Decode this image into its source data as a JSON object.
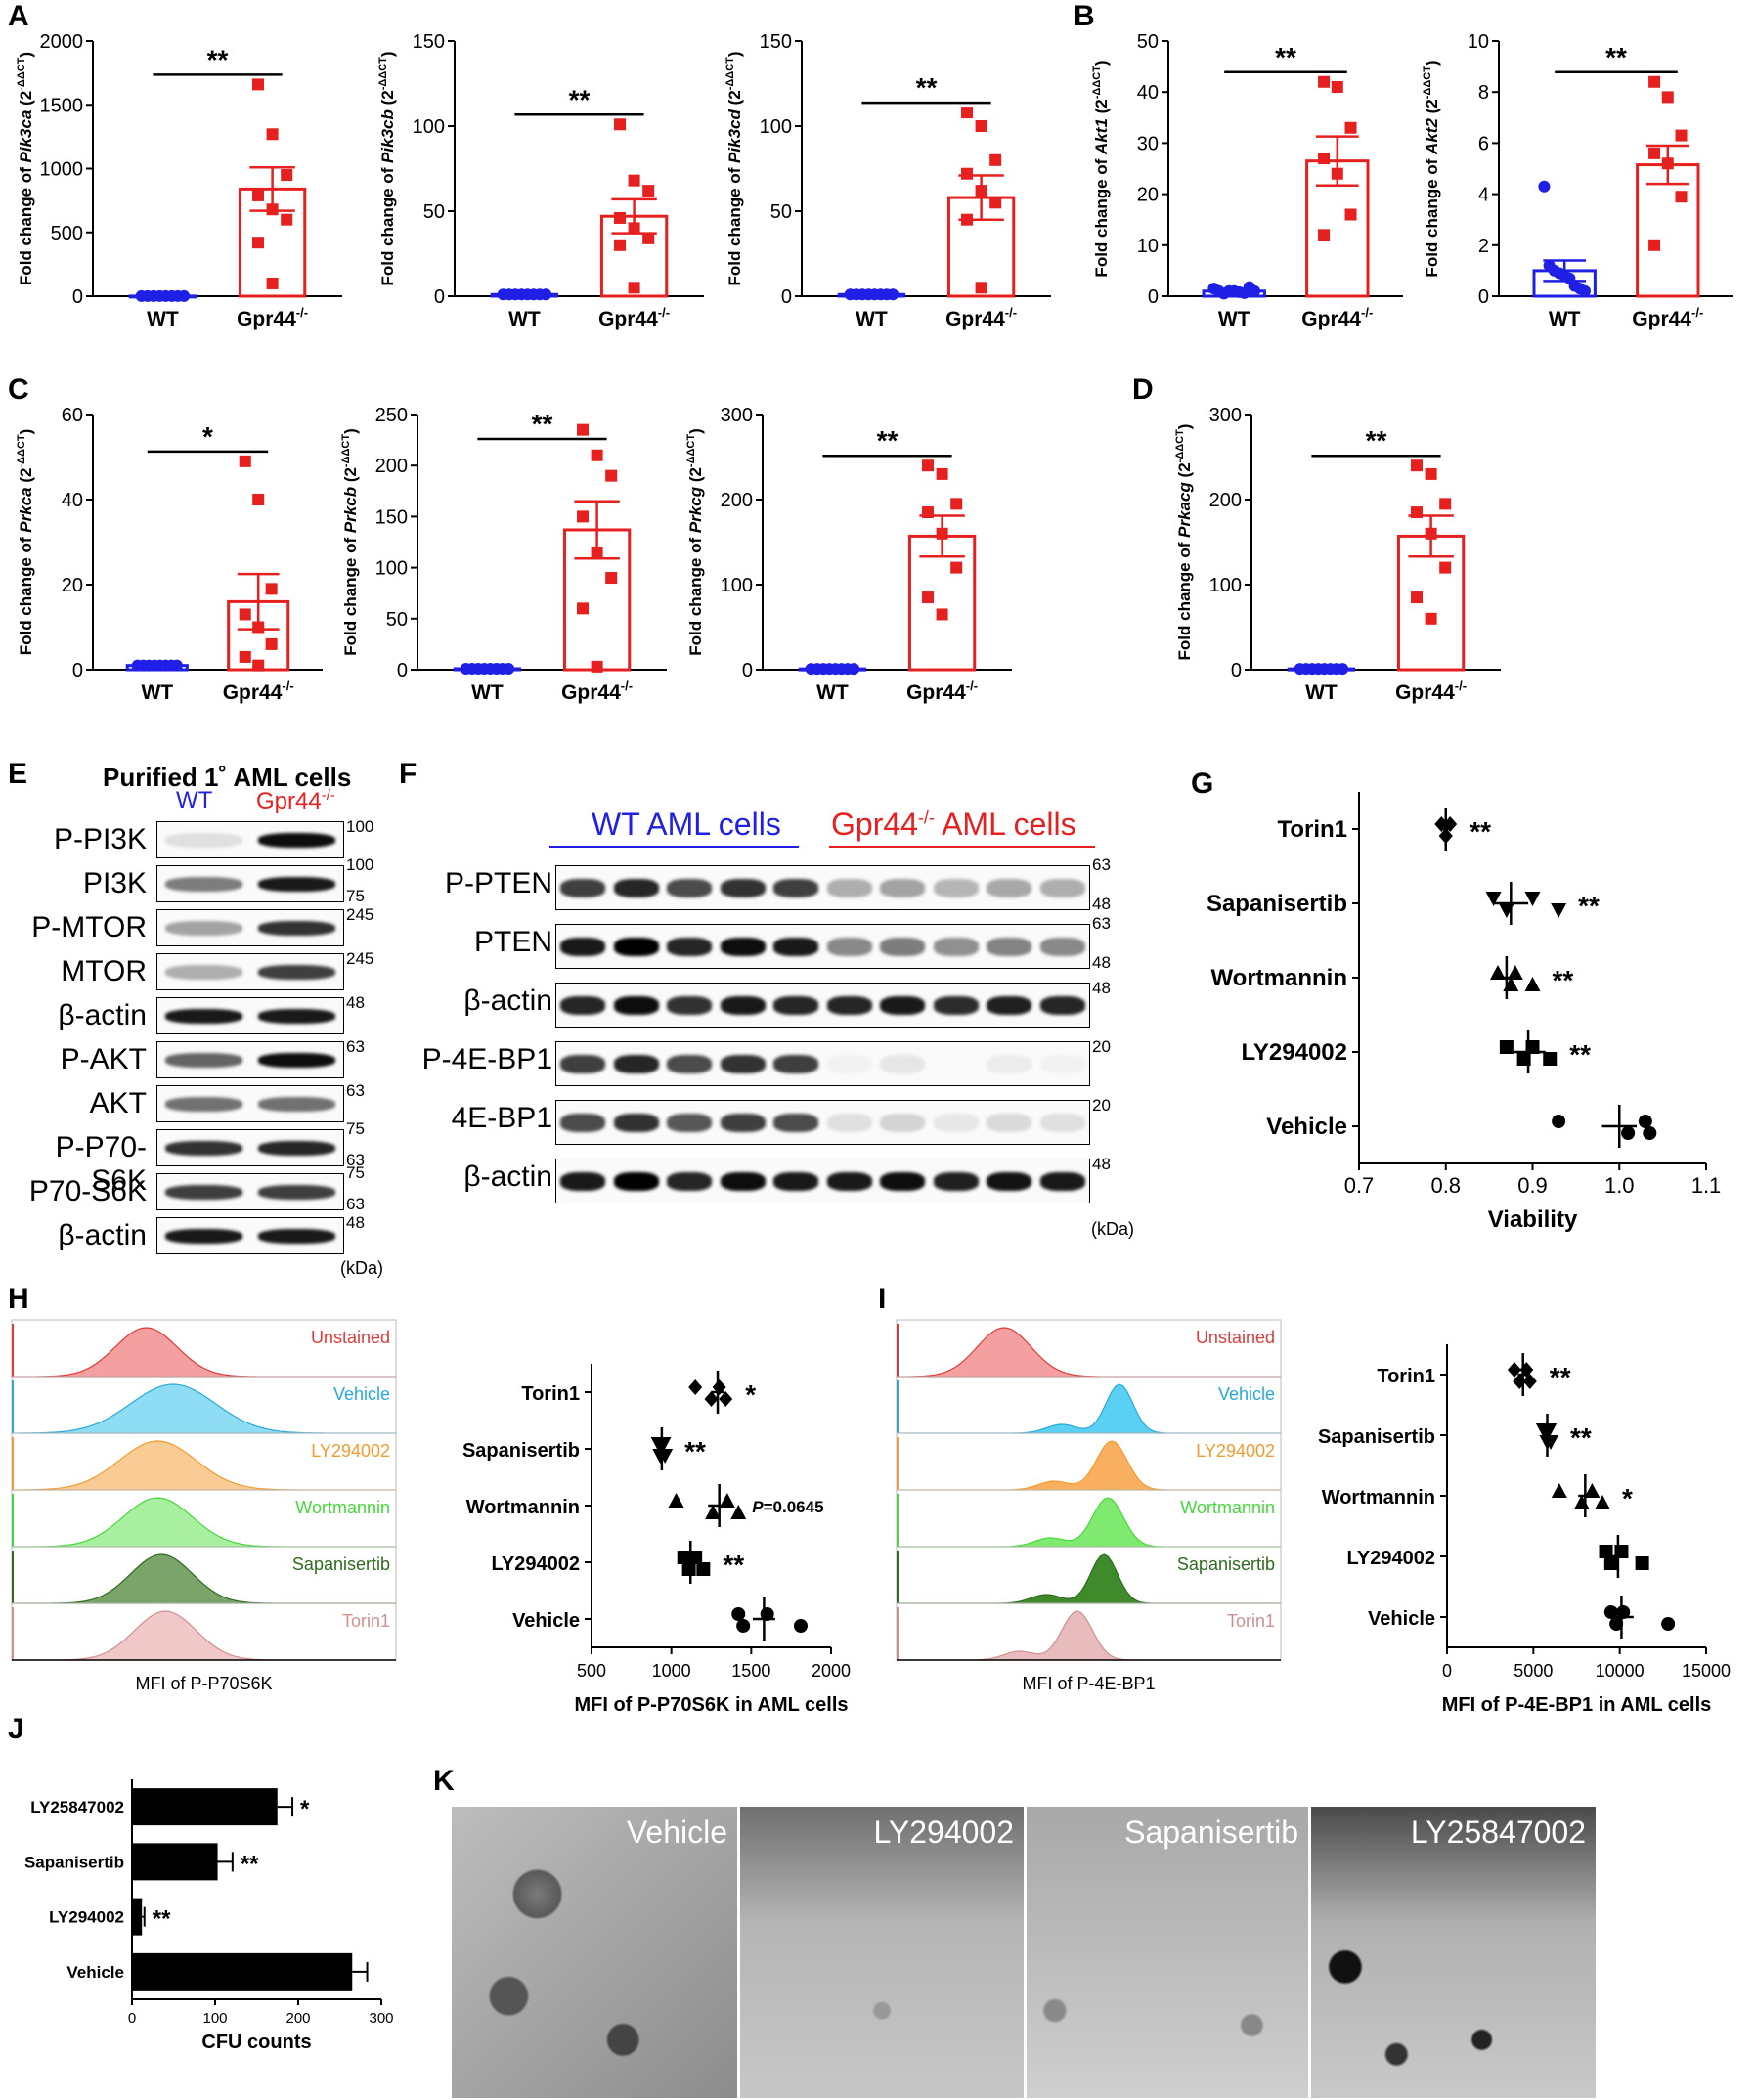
{
  "figure": {
    "panel_labels": {
      "A": "A",
      "B": "B",
      "C": "C",
      "D": "D",
      "E": "E",
      "F": "F",
      "G": "G",
      "H": "H",
      "I": "I",
      "J": "J",
      "K": "K"
    },
    "colors": {
      "wt": "#1f1fe6",
      "ko": "#e61f1f",
      "black": "#000000"
    }
  },
  "chart_data": [
    {
      "id": "pik3ca",
      "type": "scatter",
      "xtick_labels": [
        "WT",
        "Gpr44"
      ],
      "ko_superscript": "-/-",
      "ylabel_prefix": "Fold change of ",
      "gene": "Pik3ca",
      "ylabel_suffix": " (2",
      "ylabel_sup": "-ΔΔCT",
      "ylabel_close": ")",
      "ylim": [
        0,
        2000
      ],
      "yticks": [
        0,
        500,
        1000,
        1500,
        2000
      ],
      "wt_values": [
        1,
        1,
        1,
        1,
        1,
        1,
        1,
        1
      ],
      "ko_values": [
        1660,
        1270,
        950,
        790,
        680,
        600,
        420,
        100
      ],
      "wt_mean": 1,
      "ko_mean": 840,
      "ko_sem": 170,
      "wt_sem": 0,
      "sig": "**"
    },
    {
      "id": "pik3cb",
      "type": "scatter",
      "xtick_labels": [
        "WT",
        "Gpr44"
      ],
      "ko_superscript": "-/-",
      "ylabel_prefix": "Fold change of ",
      "gene": "Pik3cb",
      "ylabel_suffix": " (2",
      "ylabel_sup": "-ΔΔCT",
      "ylabel_close": ")",
      "ylim": [
        0,
        150
      ],
      "yticks": [
        0,
        50,
        100,
        150
      ],
      "wt_values": [
        1,
        1,
        1,
        1,
        1,
        1,
        1,
        1
      ],
      "ko_values": [
        101,
        68,
        62,
        46,
        40,
        34,
        30,
        5
      ],
      "wt_mean": 1,
      "ko_mean": 47,
      "ko_sem": 10,
      "wt_sem": 0,
      "sig": "**"
    },
    {
      "id": "pik3cd",
      "type": "scatter",
      "xtick_labels": [
        "WT",
        "Gpr44"
      ],
      "ko_superscript": "-/-",
      "ylabel_prefix": "Fold change of ",
      "gene": "Pik3cd",
      "ylabel_suffix": " (2",
      "ylabel_sup": "-ΔΔCT",
      "ylabel_close": ")",
      "ylim": [
        0,
        150
      ],
      "yticks": [
        0,
        50,
        100,
        150
      ],
      "wt_values": [
        1,
        1,
        1,
        1,
        1,
        1,
        1,
        1
      ],
      "ko_values": [
        108,
        100,
        80,
        72,
        62,
        55,
        45,
        5
      ],
      "wt_mean": 1,
      "ko_mean": 58,
      "ko_sem": 13,
      "wt_sem": 0,
      "sig": "**"
    },
    {
      "id": "akt1",
      "type": "scatter",
      "xtick_labels": [
        "WT",
        "Gpr44"
      ],
      "ko_superscript": "-/-",
      "ylabel_prefix": "Fold change of ",
      "gene": "Akt1",
      "ylabel_suffix": " (2",
      "ylabel_sup": "-ΔΔCT",
      "ylabel_close": ")",
      "ylim": [
        0,
        50
      ],
      "yticks": [
        0,
        10,
        20,
        30,
        40,
        50
      ],
      "wt_values": [
        1.5,
        1,
        0.5,
        1,
        1,
        0.8,
        0.6,
        1.8,
        1
      ],
      "ko_values": [
        42,
        41,
        33,
        27,
        24,
        16,
        12
      ],
      "wt_mean": 1,
      "ko_mean": 26.5,
      "ko_sem": 4.8,
      "wt_sem": 0.2,
      "sig": "**"
    },
    {
      "id": "akt2",
      "type": "scatter",
      "xtick_labels": [
        "WT",
        "Gpr44"
      ],
      "ko_superscript": "-/-",
      "ylabel_prefix": "Fold change of ",
      "gene": "Akt2",
      "ylabel_suffix": " (2",
      "ylabel_sup": "-ΔΔCT",
      "ylabel_close": ")",
      "ylim": [
        0,
        10
      ],
      "yticks": [
        0,
        2,
        4,
        6,
        8,
        10
      ],
      "wt_values": [
        4.3,
        1.2,
        1,
        0.9,
        0.8,
        0.7,
        0.4,
        0.3,
        0.2
      ],
      "ko_values": [
        8.4,
        7.8,
        6.3,
        5.6,
        5.2,
        3.9,
        2.0
      ],
      "wt_mean": 1,
      "ko_mean": 5.15,
      "ko_sem": 0.75,
      "wt_sem": 0.4,
      "sig": "**"
    },
    {
      "id": "prkca",
      "type": "scatter",
      "xtick_labels": [
        "WT",
        "Gpr44"
      ],
      "ko_superscript": "-/-",
      "ylabel_prefix": "Fold change of ",
      "gene": "Prkca",
      "ylabel_suffix": " (2",
      "ylabel_sup": "-ΔΔCT",
      "ylabel_close": ")",
      "ylim": [
        0,
        60
      ],
      "yticks": [
        0,
        20,
        40,
        60
      ],
      "wt_values": [
        1,
        1,
        1,
        1,
        1,
        1,
        1,
        1
      ],
      "ko_values": [
        49,
        40,
        19,
        13,
        10,
        6,
        3,
        1
      ],
      "wt_mean": 1,
      "ko_mean": 16,
      "ko_sem": 6.5,
      "wt_sem": 0.3,
      "sig": "*"
    },
    {
      "id": "prkcb",
      "type": "scatter",
      "xtick_labels": [
        "WT",
        "Gpr44"
      ],
      "ko_superscript": "-/-",
      "ylabel_prefix": "Fold change of ",
      "gene": "Prkcb",
      "ylabel_suffix": " (2",
      "ylabel_sup": "-ΔΔCT",
      "ylabel_close": ")",
      "ylim": [
        0,
        250
      ],
      "yticks": [
        0,
        50,
        100,
        150,
        200,
        250
      ],
      "wt_values": [
        1,
        1,
        1,
        1,
        1,
        1,
        1,
        1
      ],
      "ko_values": [
        235,
        210,
        190,
        150,
        115,
        90,
        60,
        3
      ],
      "wt_mean": 1,
      "ko_mean": 137,
      "ko_sem": 28,
      "wt_sem": 0,
      "sig": "**"
    },
    {
      "id": "prkcg",
      "type": "scatter",
      "xtick_labels": [
        "WT",
        "Gpr44"
      ],
      "ko_superscript": "-/-",
      "ylabel_prefix": "Fold change of ",
      "gene": "Prkcg",
      "ylabel_suffix": " (2",
      "ylabel_sup": "-ΔΔCT",
      "ylabel_close": ")",
      "ylim": [
        0,
        300
      ],
      "yticks": [
        0,
        100,
        200,
        300
      ],
      "wt_values": [
        1,
        1,
        1,
        1,
        1,
        1,
        1,
        1
      ],
      "ko_values": [
        240,
        230,
        195,
        185,
        160,
        120,
        85,
        65
      ],
      "wt_mean": 1,
      "ko_mean": 157,
      "ko_sem": 24,
      "wt_sem": 0,
      "sig": "**"
    },
    {
      "id": "prkacg",
      "type": "scatter",
      "xtick_labels": [
        "WT",
        "Gpr44"
      ],
      "ko_superscript": "-/-",
      "ylabel_prefix": "Fold change of ",
      "gene": "Prkacg",
      "ylabel_suffix": " (2",
      "ylabel_sup": "-ΔΔCT",
      "ylabel_close": ")",
      "ylim": [
        0,
        300
      ],
      "yticks": [
        0,
        100,
        200,
        300
      ],
      "wt_values": [
        1,
        1,
        1,
        1,
        1,
        1,
        1,
        1
      ],
      "ko_values": [
        240,
        230,
        195,
        185,
        160,
        120,
        85,
        60
      ],
      "wt_mean": 1,
      "ko_mean": 157,
      "ko_sem": 24,
      "wt_sem": 0,
      "sig": "**"
    },
    {
      "id": "viability",
      "type": "scatter",
      "xlabel": "Viability",
      "xlim": [
        0.7,
        1.1
      ],
      "xticks": [
        "0.7",
        "0.8",
        "0.9",
        "1.0",
        "1.1"
      ],
      "categories": [
        "Torin1",
        "Sapanisertib",
        "Wortmannin",
        "LY294002",
        "Vehicle"
      ],
      "means": [
        0.8,
        0.875,
        0.87,
        0.895,
        1.0
      ],
      "sems": [
        0.005,
        0.02,
        0.01,
        0.02,
        0.02
      ],
      "points": [
        [
          0.795,
          0.8,
          0.805,
          0.8
        ],
        [
          0.855,
          0.87,
          0.9,
          0.93
        ],
        [
          0.86,
          0.875,
          0.88,
          0.9
        ],
        [
          0.87,
          0.89,
          0.9,
          0.92
        ],
        [
          0.93,
          1.01,
          1.03,
          1.035
        ]
      ],
      "sig": [
        "**",
        "**",
        "**",
        "**",
        ""
      ]
    },
    {
      "id": "mfi_p70",
      "type": "scatter",
      "xlabel": "MFI of P-P70S6K in AML cells",
      "xlim": [
        500,
        2000
      ],
      "xticks": [
        "500",
        "1000",
        "1500",
        "2000"
      ],
      "categories": [
        "Torin1",
        "Sapanisertib",
        "Wortmannin",
        "LY294002",
        "Vehicle"
      ],
      "means": [
        1290,
        940,
        1300,
        1120,
        1580
      ],
      "sems": [
        40,
        20,
        70,
        30,
        70
      ],
      "points": [
        [
          1150,
          1250,
          1300,
          1340
        ],
        [
          920,
          930,
          950,
          960
        ],
        [
          1030,
          1260,
          1350,
          1420
        ],
        [
          1080,
          1110,
          1150,
          1200
        ],
        [
          1420,
          1450,
          1600,
          1810
        ]
      ],
      "sig": [
        "*",
        "**",
        "",
        "**",
        ""
      ],
      "pnote_italic": "P",
      "pnote_rest": "=0.0645"
    },
    {
      "id": "mfi_4ebp1",
      "type": "scatter",
      "xlabel": "MFI of P-4E-BP1 in AML cells",
      "xlim": [
        0,
        15000
      ],
      "xticks": [
        "0",
        "5000",
        "10000",
        "15000"
      ],
      "categories": [
        "Torin1",
        "Sapanisertib",
        "Wortmannin",
        "LY294002",
        "Vehicle"
      ],
      "means": [
        4400,
        5800,
        8000,
        9900,
        10100
      ],
      "sems": [
        300,
        150,
        400,
        600,
        700
      ],
      "points": [
        [
          3900,
          4200,
          4600,
          4800
        ],
        [
          5600,
          5800,
          5900,
          6000
        ],
        [
          6500,
          7800,
          8400,
          9000
        ],
        [
          9200,
          9500,
          10100,
          11300
        ],
        [
          9500,
          9800,
          10200,
          12800
        ]
      ],
      "sig": [
        "**",
        "**",
        "*",
        "",
        ""
      ]
    },
    {
      "id": "cfu",
      "type": "bar",
      "xlabel": "CFU counts",
      "xlim": [
        0,
        300
      ],
      "xticks": [
        "0",
        "100",
        "200",
        "300"
      ],
      "categories": [
        "LY25847002",
        "Sapanisertib",
        "LY294002",
        "Vehicle"
      ],
      "values": [
        175,
        103,
        12,
        265
      ],
      "errors": [
        18,
        18,
        3,
        18
      ],
      "sig": [
        "*",
        "**",
        "**",
        ""
      ]
    }
  ],
  "panel_e": {
    "title": "Purified 1˚ AML cells",
    "lane_wt": "WT",
    "lane_ko": "Gpr44",
    "lane_ko_sup": "-/-",
    "rows": [
      {
        "label": "P-PI3K",
        "markers": [
          "100"
        ]
      },
      {
        "label": "PI3K",
        "markers": [
          "100",
          "75"
        ]
      },
      {
        "label": "P-MTOR",
        "markers": [
          "245"
        ]
      },
      {
        "label": "MTOR",
        "markers": [
          "245"
        ]
      },
      {
        "label": "β-actin",
        "markers": [
          "48"
        ]
      },
      {
        "label": "P-AKT",
        "markers": [
          "63"
        ]
      },
      {
        "label": "AKT",
        "markers": [
          "63"
        ]
      },
      {
        "label": "P-P70-S6K",
        "markers": [
          "75",
          "63"
        ]
      },
      {
        "label": "P70-S6K",
        "markers": [
          "75",
          "63"
        ]
      },
      {
        "label": "β-actin",
        "markers": [
          "48"
        ]
      }
    ],
    "kda": "(kDa)"
  },
  "panel_f": {
    "wt_header": "WT AML cells",
    "ko_header_pre": "Gpr44",
    "ko_header_sup": "-/-",
    "ko_header_post": " AML cells",
    "rows": [
      {
        "label": "P-PTEN",
        "markers": [
          "63",
          "48"
        ]
      },
      {
        "label": "PTEN",
        "markers": [
          "63",
          "48"
        ]
      },
      {
        "label": "β-actin",
        "markers": [
          "48"
        ]
      },
      {
        "label": "P-4E-BP1",
        "markers": [
          "20"
        ]
      },
      {
        "label": "4E-BP1",
        "markers": [
          "20"
        ]
      },
      {
        "label": "β-actin",
        "markers": [
          "48"
        ]
      }
    ],
    "kda": "(kDa)"
  },
  "panel_h_hist": {
    "xlabel": "MFI of P-P70S6K",
    "tracks": [
      {
        "label": "Unstained",
        "color": "#e03a3a",
        "fill": "#f4a0a0"
      },
      {
        "label": "Vehicle",
        "color": "#29a9d8",
        "fill": "#8fdcf5"
      },
      {
        "label": "LY294002",
        "color": "#f29b30",
        "fill": "#f8cc94"
      },
      {
        "label": "Wortmannin",
        "color": "#45d83a",
        "fill": "#a8f0a0"
      },
      {
        "label": "Sapanisertib",
        "color": "#2e6b1e",
        "fill": "#7aa46a"
      },
      {
        "label": "Torin1",
        "color": "#d09090",
        "fill": "#f1c8c8"
      }
    ]
  },
  "panel_i_hist": {
    "xlabel": "MFI of P-4E-BP1",
    "tracks": [
      {
        "label": "Unstained",
        "color": "#e03a3a",
        "fill": "#f4a0a0"
      },
      {
        "label": "Vehicle",
        "color": "#29a9d8",
        "fill": "#5ad0f5"
      },
      {
        "label": "LY294002",
        "color": "#f29b30",
        "fill": "#f8b060"
      },
      {
        "label": "Wortmannin",
        "color": "#45d83a",
        "fill": "#80ea70"
      },
      {
        "label": "Sapanisertib",
        "color": "#2e6b1e",
        "fill": "#3f8a2a"
      },
      {
        "label": "Torin1",
        "color": "#d09090",
        "fill": "#e8bcbc"
      }
    ]
  },
  "panel_k": {
    "images": [
      "Vehicle",
      "LY294002",
      "Sapanisertib",
      "LY25847002"
    ]
  }
}
